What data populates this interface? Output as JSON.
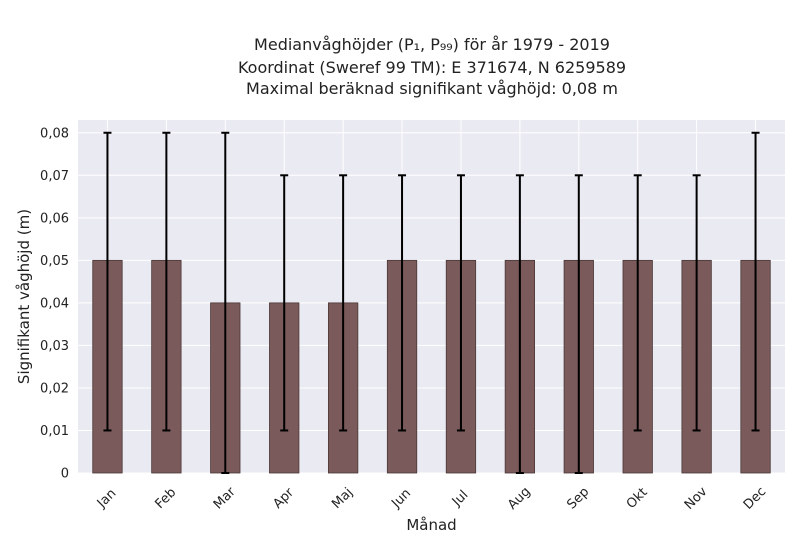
{
  "chart_data": {
    "type": "bar",
    "title_lines": [
      "Medianvåghöjder (P₁, P₉₉) för år 1979 - 2019",
      "Koordinat (Sweref 99 TM): E 371674, N 6259589",
      "Maximal beräknad signifikant våghöjd: 0,08 m"
    ],
    "xlabel": "Månad",
    "ylabel": "Signifikant våghöjd (m)",
    "categories": [
      "Jan",
      "Feb",
      "Mar",
      "Apr",
      "Maj",
      "Jun",
      "Jul",
      "Aug",
      "Sep",
      "Okt",
      "Nov",
      "Dec"
    ],
    "values": [
      0.05,
      0.05,
      0.04,
      0.04,
      0.04,
      0.05,
      0.05,
      0.05,
      0.05,
      0.05,
      0.05,
      0.05
    ],
    "error_low": [
      0.01,
      0.01,
      0.0,
      0.01,
      0.01,
      0.01,
      0.01,
      0.0,
      0.0,
      0.01,
      0.01,
      0.01
    ],
    "error_high": [
      0.08,
      0.08,
      0.08,
      0.07,
      0.07,
      0.07,
      0.07,
      0.07,
      0.07,
      0.07,
      0.07,
      0.08
    ],
    "ylim": [
      0,
      0.083
    ],
    "yticks": [
      0,
      0.01,
      0.02,
      0.03,
      0.04,
      0.05,
      0.06,
      0.07,
      0.08
    ],
    "ytick_labels": [
      "0",
      "0,01",
      "0,02",
      "0,03",
      "0,04",
      "0,05",
      "0,06",
      "0,07",
      "0,08"
    ],
    "grid": true,
    "colors": {
      "bar": "#7a5a5a",
      "bar_edge": "#4a3838",
      "plot_bg": "#eaeaf2",
      "grid": "#ffffff",
      "error": "#000000"
    }
  }
}
